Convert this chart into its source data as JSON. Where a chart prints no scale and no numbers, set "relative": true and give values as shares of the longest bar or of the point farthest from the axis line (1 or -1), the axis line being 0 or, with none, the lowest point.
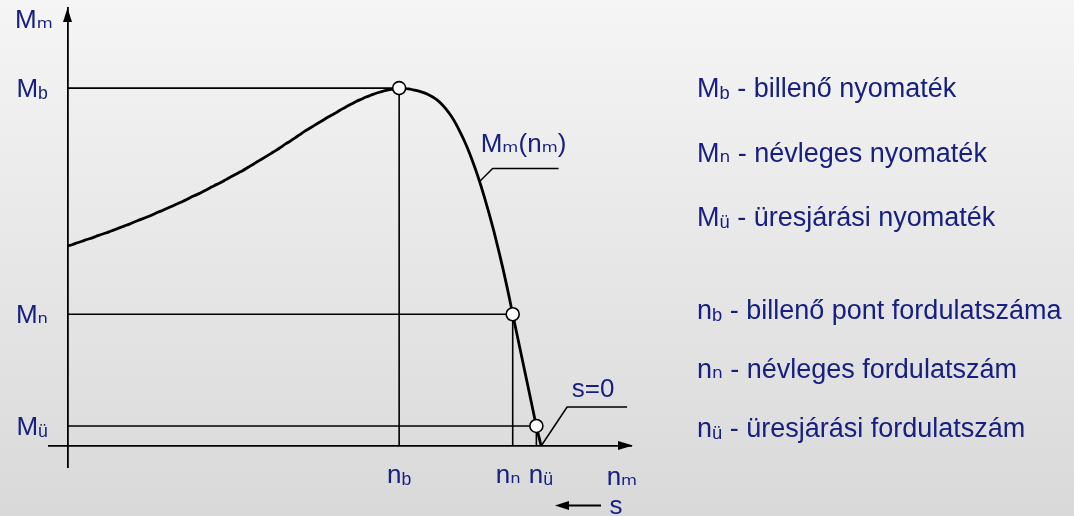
{
  "chart_data": {
    "type": "line",
    "relative": true,
    "xlabel": "nₘ",
    "ylabel": "Mₘ",
    "categories": [
      null,
      null,
      null,
      null,
      null,
      null,
      null,
      null,
      null,
      null,
      null,
      null,
      null,
      null,
      null,
      null,
      null,
      null,
      null,
      null,
      null,
      null,
      null,
      null,
      null,
      null,
      null,
      null,
      null,
      null,
      null,
      null,
      null,
      null,
      null,
      null,
      null,
      null,
      null,
      null,
      null,
      null,
      null,
      null,
      null,
      null,
      null,
      null,
      null,
      null,
      null,
      null,
      null,
      null,
      null,
      null,
      null,
      null,
      null,
      null,
      null,
      null,
      null,
      null,
      null,
      null,
      null,
      null,
      null,
      null,
      null,
      null,
      null,
      null,
      "n$_{b}$",
      null,
      null,
      null,
      null,
      null,
      null,
      null,
      null,
      null,
      null,
      null,
      null,
      null,
      null,
      null,
      null,
      null,
      null,
      null,
      null,
      null,
      null,
      null,
      "nₙ",
      null,
      null,
      null,
      null,
      "n$_{ü}$",
      null,
      null,
      null,
      null,
      null,
      null,
      null,
      null,
      null,
      null,
      null,
      null,
      null,
      null,
      null,
      null,
      null,
      null,
      null,
      null
    ],
    "series": [
      {
        "name": "Mₘ(nₘ)",
        "color": "#000000",
        "values": [
          null,
          null,
          null,
          null,
          0.559,
          0.563,
          0.568,
          0.572,
          0.577,
          0.581,
          0.586,
          0.591,
          0.595,
          0.6,
          0.605,
          0.61,
          0.615,
          0.62,
          0.626,
          0.631,
          0.636,
          0.641,
          0.647,
          0.653,
          0.658,
          0.664,
          0.67,
          0.676,
          0.682,
          0.688,
          0.695,
          0.701,
          0.707,
          0.714,
          0.721,
          0.728,
          0.734,
          0.741,
          0.749,
          0.756,
          0.763,
          0.77,
          0.778,
          0.786,
          0.794,
          0.802,
          0.81,
          0.818,
          0.826,
          0.835,
          0.844,
          0.852,
          0.861,
          0.87,
          0.879,
          0.887,
          0.895,
          0.903,
          0.911,
          0.919,
          0.926,
          0.934,
          0.942,
          0.949,
          0.956,
          0.963,
          0.969,
          0.975,
          0.98,
          0.985,
          0.989,
          0.993,
          0.996,
          0.998,
          1,
          0.999,
          0.998,
          0.995,
          0.992,
          0.988,
          0.983,
          0.976,
          0.967,
          0.955,
          0.94,
          0.922,
          0.9,
          0.874,
          0.846,
          0.814,
          0.778,
          0.739,
          0.696,
          0.65,
          0.601,
          0.548,
          0.492,
          0.432,
          0.368,
          0.306,
          0.243,
          0.181,
          0.118,
          0.056,
          0,
          null,
          null,
          null,
          null,
          null,
          null,
          null,
          null,
          null,
          null,
          null,
          null,
          null,
          null,
          null,
          null,
          null,
          null,
          null
        ]
      },
      {
        "color": "#000000",
        "values": [
          null,
          null,
          null,
          null,
          1,
          1,
          1,
          1,
          1,
          1,
          1,
          1,
          1,
          1,
          1,
          1,
          1,
          1,
          1,
          1,
          1,
          1,
          1,
          1,
          1,
          1,
          1,
          1,
          1,
          1,
          1,
          1,
          1,
          1,
          1,
          1,
          1,
          1,
          1,
          1,
          1,
          1,
          1,
          1,
          1,
          1,
          1,
          1,
          1,
          1,
          1,
          1,
          1,
          1,
          1,
          1,
          1,
          1,
          1,
          1,
          1,
          1,
          1,
          1,
          1,
          1,
          1,
          1,
          1,
          1,
          1,
          1,
          1,
          1,
          1,
          null,
          null,
          null,
          null,
          null,
          null,
          null,
          null,
          null,
          null,
          null,
          null,
          null,
          null,
          null,
          null,
          null,
          null,
          null,
          null,
          null,
          null,
          null,
          null,
          null,
          null,
          null,
          null,
          null,
          null,
          null,
          null,
          null,
          null,
          null,
          null,
          null,
          null,
          null,
          null,
          null,
          null,
          null,
          null,
          null,
          null,
          null,
          null,
          null
        ]
      },
      {
        "color": "#000000",
        "values": [
          null,
          null,
          null,
          null,
          0.368,
          0.368,
          0.368,
          0.368,
          0.368,
          0.368,
          0.368,
          0.368,
          0.368,
          0.368,
          0.368,
          0.368,
          0.368,
          0.368,
          0.368,
          0.368,
          0.368,
          0.368,
          0.368,
          0.368,
          0.368,
          0.368,
          0.368,
          0.368,
          0.368,
          0.368,
          0.368,
          0.368,
          0.368,
          0.368,
          0.368,
          0.368,
          0.368,
          0.368,
          0.368,
          0.368,
          0.368,
          0.368,
          0.368,
          0.368,
          0.368,
          0.368,
          0.368,
          0.368,
          0.368,
          0.368,
          0.368,
          0.368,
          0.368,
          0.368,
          0.368,
          0.368,
          0.368,
          0.368,
          0.368,
          0.368,
          0.368,
          0.368,
          0.368,
          0.368,
          0.368,
          0.368,
          0.368,
          0.368,
          0.368,
          0.368,
          0.368,
          0.368,
          0.368,
          0.368,
          0.368,
          0.368,
          0.368,
          0.368,
          0.368,
          0.368,
          0.368,
          0.368,
          0.368,
          0.368,
          0.368,
          0.368,
          0.368,
          0.368,
          0.368,
          0.368,
          0.368,
          0.368,
          0.368,
          0.368,
          0.368,
          0.368,
          0.368,
          0.368,
          0.368,
          null,
          null,
          null,
          null,
          null,
          null,
          null,
          null,
          null,
          null,
          null,
          null,
          null,
          null,
          null,
          null,
          null,
          null,
          null,
          null,
          null,
          null,
          null,
          null,
          null
        ]
      },
      {
        "color": "#000000",
        "values": [
          null,
          null,
          null,
          null,
          0.056,
          0.056,
          0.056,
          0.056,
          0.056,
          0.056,
          0.056,
          0.056,
          0.056,
          0.056,
          0.056,
          0.056,
          0.056,
          0.056,
          0.056,
          0.056,
          0.056,
          0.056,
          0.056,
          0.056,
          0.056,
          0.056,
          0.056,
          0.056,
          0.056,
          0.056,
          0.056,
          0.056,
          0.056,
          0.056,
          0.056,
          0.056,
          0.056,
          0.056,
          0.056,
          0.056,
          0.056,
          0.056,
          0.056,
          0.056,
          0.056,
          0.056,
          0.056,
          0.056,
          0.056,
          0.056,
          0.056,
          0.056,
          0.056,
          0.056,
          0.056,
          0.056,
          0.056,
          0.056,
          0.056,
          0.056,
          0.056,
          0.056,
          0.056,
          0.056,
          0.056,
          0.056,
          0.056,
          0.056,
          0.056,
          0.056,
          0.056,
          0.056,
          0.056,
          0.056,
          0.056,
          0.056,
          0.056,
          0.056,
          0.056,
          0.056,
          0.056,
          0.056,
          0.056,
          0.056,
          0.056,
          0.056,
          0.056,
          0.056,
          0.056,
          0.056,
          0.056,
          0.056,
          0.056,
          0.056,
          0.056,
          0.056,
          0.056,
          0.056,
          0.056,
          0.056,
          0.056,
          0.056,
          0.056,
          0.056,
          null,
          null,
          null,
          null,
          null,
          null,
          null,
          null,
          null,
          null,
          null,
          null,
          null,
          null,
          null,
          null,
          null,
          null,
          null,
          null
        ]
      },
      {
        "type": "lollipop",
        "color": "#000000",
        "marker": "circle",
        "values": [
          null,
          null,
          null,
          null,
          null,
          null,
          null,
          null,
          null,
          null,
          null,
          null,
          null,
          null,
          null,
          null,
          null,
          null,
          null,
          null,
          null,
          null,
          null,
          null,
          null,
          null,
          null,
          null,
          null,
          null,
          null,
          null,
          null,
          null,
          null,
          null,
          null,
          null,
          null,
          null,
          null,
          null,
          null,
          null,
          null,
          null,
          null,
          null,
          null,
          null,
          null,
          null,
          null,
          null,
          null,
          null,
          null,
          null,
          null,
          null,
          null,
          null,
          null,
          null,
          null,
          null,
          null,
          null,
          null,
          null,
          null,
          null,
          null,
          null,
          1,
          null,
          null,
          null,
          null,
          null,
          null,
          null,
          null,
          null,
          null,
          null,
          null,
          null,
          null,
          null,
          null,
          null,
          null,
          null,
          null,
          null,
          null,
          null,
          0.368,
          null,
          null,
          null,
          null,
          0.056,
          null,
          null,
          null,
          null,
          null,
          null,
          null,
          null,
          null,
          null,
          null,
          null,
          null,
          null,
          null,
          null,
          null,
          null,
          null,
          null
        ]
      }
    ],
    "annotations": [
      "M$_{b}$",
      "Mₙ",
      "M$_{ü}$",
      "s=0",
      "M$_{b}$ - billenő nyomaték",
      "Mₙ - névleges nyomaték",
      "M$_{ü}$ - üresjárási nyomaték",
      "n$_{b}$ - billenő pont fordulatszáma",
      "nₙ - névleges fordulatszám",
      "n$_{ü}$ - üresjárási fordulatszám",
      "s"
    ]
  }
}
